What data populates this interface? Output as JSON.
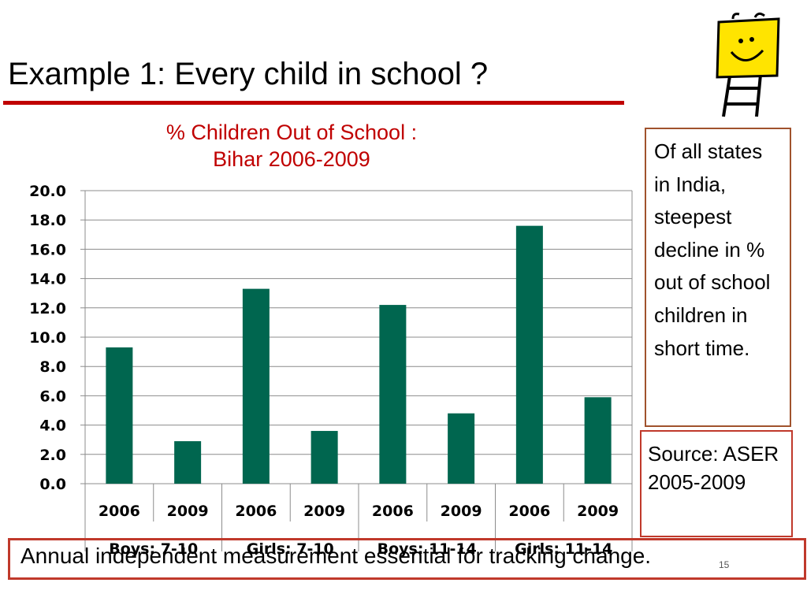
{
  "slide": {
    "title": "Example 1: Every child in school ?",
    "footer": "Annual independent measurement essential for tracking change.",
    "page_number": "15"
  },
  "side_note": {
    "text": "Of all states in India, steepest decline in % out of school children in short time."
  },
  "source_note": {
    "text": "Source: ASER 2005-2009"
  },
  "colors": {
    "bar": "#00664f",
    "title_red": "#c00000",
    "box_border": "#a0522d"
  },
  "chart_data": {
    "type": "bar",
    "title": "% Children Out of School :",
    "subtitle": "Bihar 2006-2009",
    "ylim": [
      0,
      20
    ],
    "yticks": [
      "0.0",
      "2.0",
      "4.0",
      "6.0",
      "8.0",
      "10.0",
      "12.0",
      "14.0",
      "16.0",
      "18.0",
      "20.0"
    ],
    "categories": [
      "2006",
      "2009",
      "2006",
      "2009",
      "2006",
      "2009",
      "2006",
      "2009"
    ],
    "groups": [
      "Boys: 7-10",
      "Girls: 7-10",
      "Boys: 11-14",
      "Girls: 11-14"
    ],
    "values": [
      9.3,
      2.9,
      13.3,
      3.6,
      12.2,
      4.8,
      17.6,
      5.9
    ],
    "grid": true,
    "legend": "none"
  }
}
